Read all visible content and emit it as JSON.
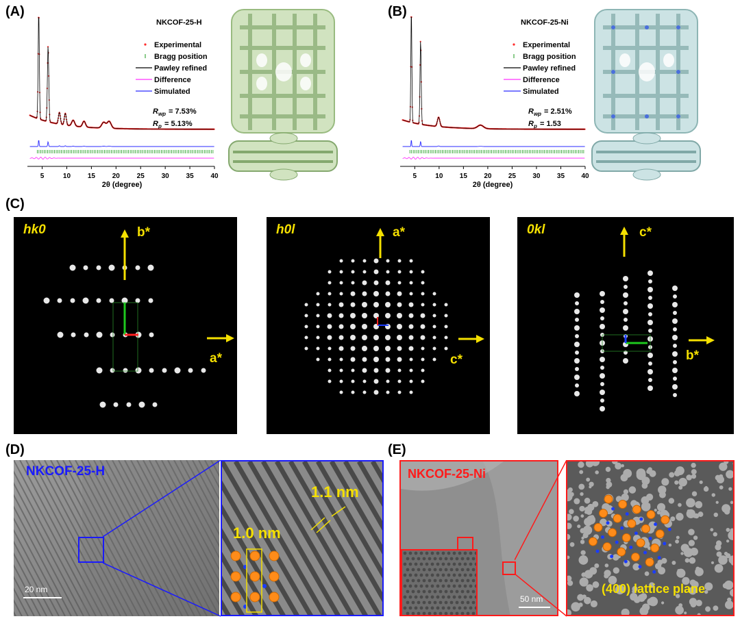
{
  "panels": {
    "A": "(A)",
    "B": "(B)",
    "C": "(C)",
    "D": "(D)",
    "E": "(E)"
  },
  "xrd": [
    {
      "sample": "NKCOF-25-H",
      "sample_color": "#1a1aff",
      "legend": [
        "Experimental",
        "Bragg position",
        "Pawley refined",
        "Difference",
        "Simulated"
      ],
      "rwp": "= 7.53%",
      "rp": "= 5.13%",
      "xlabel": "2θ (degree)",
      "xticks": [
        "5",
        "10",
        "15",
        "20",
        "25",
        "30",
        "35",
        "40"
      ]
    },
    {
      "sample": "NKCOF-25-Ni",
      "sample_color": "#ff1a1a",
      "legend": [
        "Experimental",
        "Bragg position",
        "Pawley refined",
        "Difference",
        "Simulated"
      ],
      "rwp": "= 2.51%",
      "rp": "= 1.53",
      "xlabel": "2θ (degree)",
      "xticks": [
        "5",
        "10",
        "15",
        "20",
        "25",
        "30",
        "35",
        "40"
      ]
    }
  ],
  "saed": [
    {
      "zone": "hk0",
      "up": "b*",
      "right": "a*"
    },
    {
      "zone": "h0l",
      "up": "a*",
      "right": "c*"
    },
    {
      "zone": "0kl",
      "up": "c*",
      "right": "b*"
    }
  ],
  "tem": {
    "d_label": "NKCOF-25-H",
    "d_scale": "20 nm",
    "d_spacing1": "1.0 nm",
    "d_spacing2": "1.1 nm",
    "e_label": "NKCOF-25-Ni",
    "e_scale": "50 nm",
    "e_plane": "(400) lattice plane"
  },
  "colors": {
    "experimental": "#ff2a2a",
    "bragg": "#1a9a1a",
    "pawley": "#000000",
    "difference": "#ff33ff",
    "simulated": "#2a2aff",
    "saed_text": "#f5e000",
    "blue_frame": "#1a1aff",
    "red_frame": "#ff1a1a"
  }
}
